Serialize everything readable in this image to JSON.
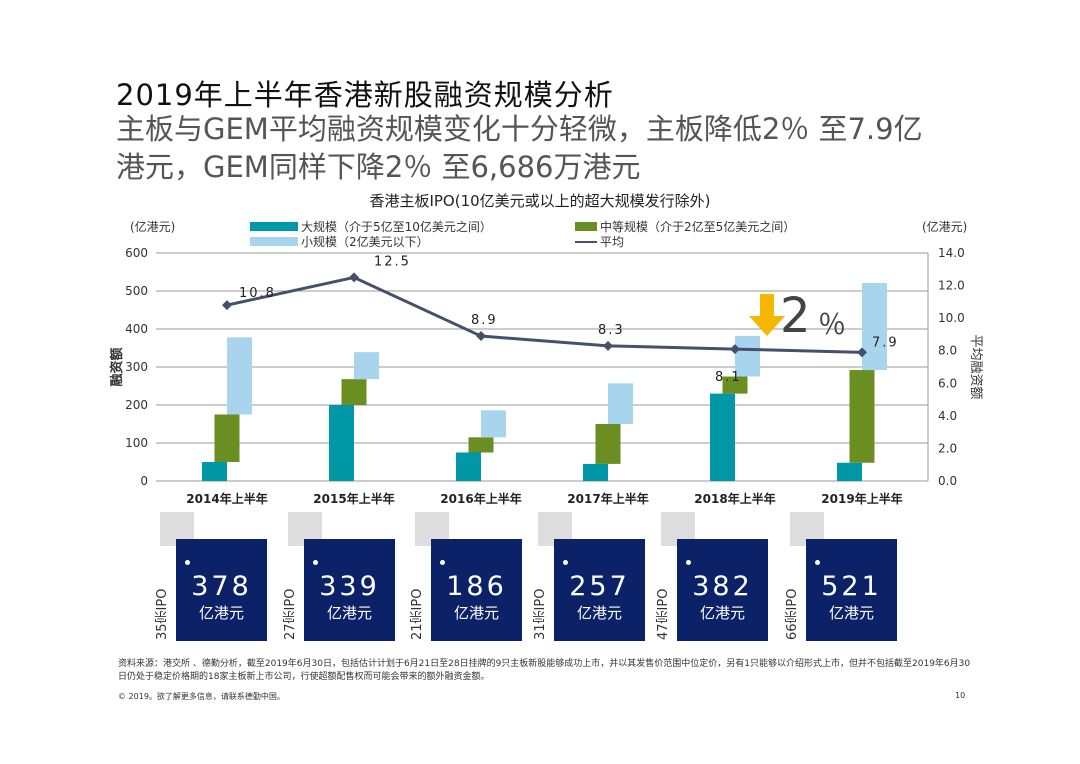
{
  "title": "2019年上半年香港新股融资规模分析",
  "subtitle": "主板与GEM平均融资规模变化十分轻微，主板降低2％ 至7.9亿港元，GEM同样下降2％ 至6,686万港元",
  "callout": {
    "arrow": "down-arrow-icon",
    "value": "2",
    "unit": "％",
    "color": "#f5b700"
  },
  "chart_data": {
    "type": "bar",
    "title": "香港主板IPO(10亿美元或以上的超大规模发行除外)",
    "ylabel": "融资额",
    "ylabel_unit": "(亿港元)",
    "y2label": "平均融资额",
    "y2label_unit": "(亿港元)",
    "ylim": [
      0,
      600
    ],
    "yticks": [
      "0",
      "100",
      "200",
      "300",
      "400",
      "500",
      "600"
    ],
    "y2lim": [
      0,
      14
    ],
    "y2ticks": [
      "0.0",
      "2.0",
      "4.0",
      "6.0",
      "8.0",
      "10.0",
      "12.0",
      "14.0"
    ],
    "grid": true,
    "layout": "waterfall-stacked",
    "legend_position": "top",
    "categories": [
      "2014年上半年",
      "2015年上半年",
      "2016年上半年",
      "2017年上半年",
      "2018年上半年",
      "2019年上半年"
    ],
    "series": [
      {
        "name": "大规模（介于5亿至10亿美元之间）",
        "color": "#0097a7",
        "values": [
          50,
          200,
          75,
          45,
          230,
          48
        ]
      },
      {
        "name": "中等规模（介于2亿至5亿美元之间）",
        "color": "#6b8e23",
        "values": [
          125,
          68,
          40,
          105,
          45,
          244
        ]
      },
      {
        "name": "小规模（2亿美元以下）",
        "color": "#a8d4ee",
        "values": [
          203,
          71,
          71,
          107,
          107,
          229
        ]
      },
      {
        "name": "平均",
        "type": "line",
        "axis": "right",
        "color": "#45506a",
        "values": [
          10.8,
          12.5,
          8.9,
          8.3,
          8.1,
          7.9
        ],
        "labels": [
          "10.8",
          "12.5",
          "8.9",
          "8.3",
          "8.1",
          "7.9"
        ]
      }
    ]
  },
  "summary": [
    {
      "count": "35宗IPO",
      "total": "378",
      "unit": "亿港元"
    },
    {
      "count": "27宗IPO",
      "total": "339",
      "unit": "亿港元"
    },
    {
      "count": "21宗IPO",
      "total": "186",
      "unit": "亿港元"
    },
    {
      "count": "31宗IPO",
      "total": "257",
      "unit": "亿港元"
    },
    {
      "count": "47宗IPO",
      "total": "382",
      "unit": "亿港元"
    },
    {
      "count": "66宗IPO",
      "total": "521",
      "unit": "亿港元"
    }
  ],
  "footnote": "资料来源：港交所 、德勤分析，截至2019年6月30日，包括估计计划于6月21日至28日挂牌的9只主板新股能够成功上市，并以其发售价范围中位定价，另有1只能够以介绍形式上市，但并不包括截至2019年6月30日仍处于稳定价格期的18家主板新上市公司，行使超额配售权而可能会带来的额外融资金额。",
  "copyright": "© 2019。欲了解更多信息，请联系德勤中国。",
  "page_number": "10"
}
